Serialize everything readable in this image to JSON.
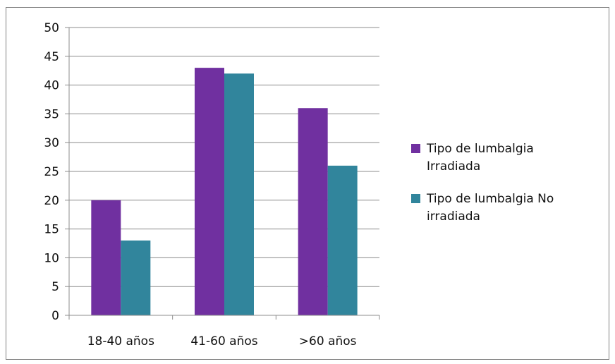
{
  "chart_data": {
    "type": "bar",
    "categories": [
      "18-40 años",
      "41-60 años",
      ">60 años"
    ],
    "series": [
      {
        "name": "Tipo de lumbalgia Irradiada",
        "values": [
          20,
          43,
          36
        ],
        "color": "#7030a0",
        "legend_lines": [
          "Tipo de lumbalgia",
          "Irradiada"
        ]
      },
      {
        "name": "Tipo de lumbalgia No irradiada",
        "values": [
          13,
          42,
          26
        ],
        "color": "#31859c",
        "legend_lines": [
          "Tipo de lumbalgia No",
          "irradiada"
        ]
      }
    ],
    "ylim": [
      0,
      50
    ],
    "yticks": [
      "0",
      "5",
      "10",
      "15",
      "20",
      "25",
      "30",
      "35",
      "40",
      "45",
      "50"
    ],
    "grid": true,
    "legend_position": "right",
    "title": "",
    "xlabel": "",
    "ylabel": ""
  }
}
